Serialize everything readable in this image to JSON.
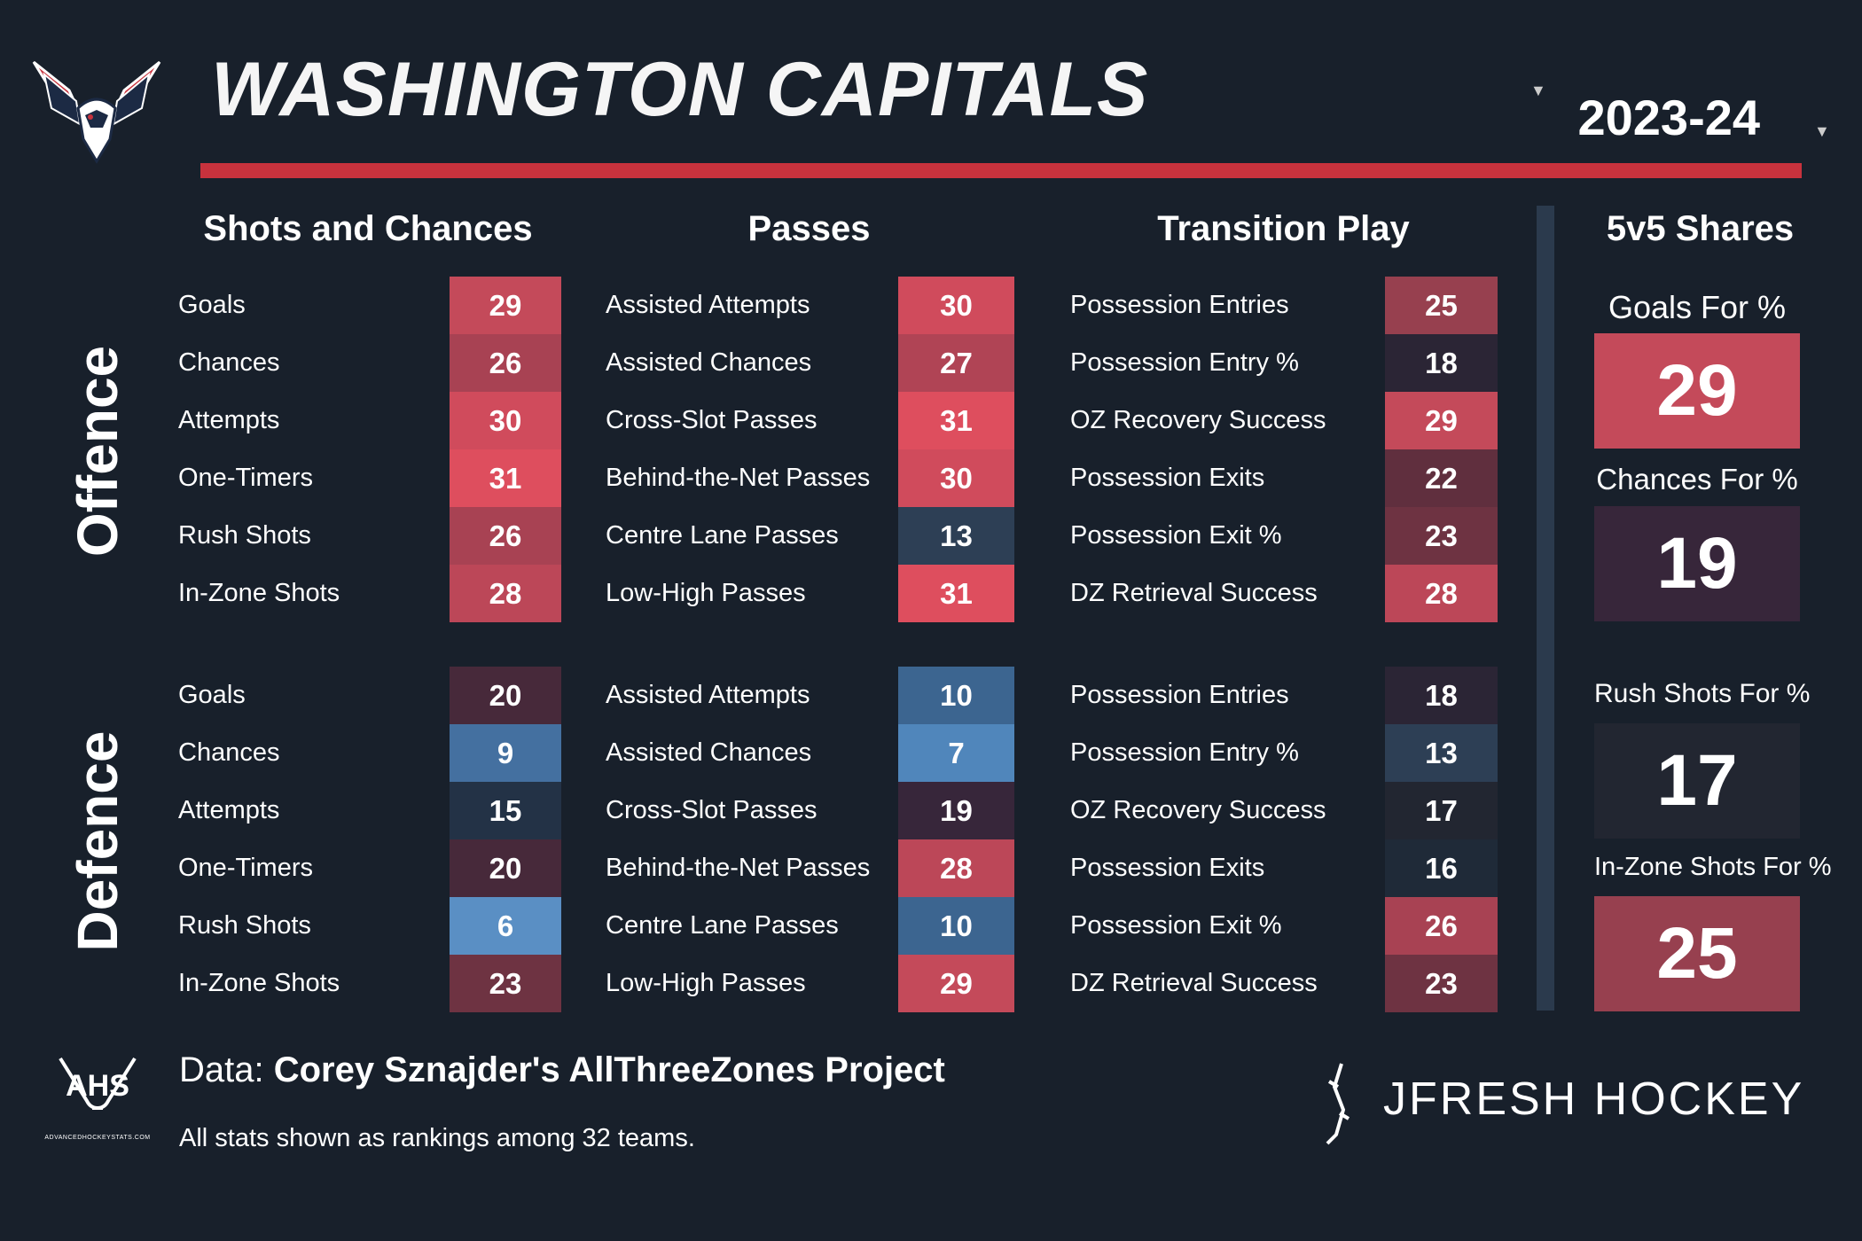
{
  "header": {
    "team": "WASHINGTON CAPITALS",
    "season": "2023-24"
  },
  "colors": {
    "bg": "#18202b",
    "accent_red": "#c8323d",
    "rank_high": "#e04a5a",
    "rank_low": "#5a8fc4"
  },
  "icons": [
    "capitals-logo-icon",
    "ahs-logo-icon",
    "jfresh-logo-icon",
    "chevron-down-icon"
  ],
  "sections": {
    "shots": "Shots and Chances",
    "passes": "Passes",
    "transition": "Transition Play",
    "shares": "5v5 Shares"
  },
  "rows": {
    "offence": "Offence",
    "defence": "Defence"
  },
  "offence": {
    "shots": [
      {
        "label": "Goals",
        "rank": 29,
        "color": "#c44a5a"
      },
      {
        "label": "Chances",
        "rank": 26,
        "color": "#a84253"
      },
      {
        "label": "Attempts",
        "rank": 30,
        "color": "#d04b5c"
      },
      {
        "label": "One-Timers",
        "rank": 31,
        "color": "#de4e5e"
      },
      {
        "label": "Rush Shots",
        "rank": 26,
        "color": "#a84253"
      },
      {
        "label": "In-Zone Shots",
        "rank": 28,
        "color": "#bc4758"
      }
    ],
    "passes": [
      {
        "label": "Assisted Attempts",
        "rank": 30,
        "color": "#d04b5c"
      },
      {
        "label": "Assisted Chances",
        "rank": 27,
        "color": "#b04455"
      },
      {
        "label": "Cross-Slot Passes",
        "rank": 31,
        "color": "#de4e5e"
      },
      {
        "label": "Behind-the-Net Passes",
        "rank": 30,
        "color": "#d04b5c"
      },
      {
        "label": "Centre Lane Passes",
        "rank": 13,
        "color": "#2d3f55"
      },
      {
        "label": "Low-High Passes",
        "rank": 31,
        "color": "#de4e5e"
      }
    ],
    "transition": [
      {
        "label": "Possession Entries",
        "rank": 25,
        "color": "#97404f"
      },
      {
        "label": "Possession Entry %",
        "rank": 18,
        "color": "#2b2535"
      },
      {
        "label": "OZ Recovery Success",
        "rank": 29,
        "color": "#c44a5a"
      },
      {
        "label": "Possession Exits",
        "rank": 22,
        "color": "#602f3e"
      },
      {
        "label": "Possession Exit %",
        "rank": 23,
        "color": "#6e3342"
      },
      {
        "label": "DZ Retrieval Success",
        "rank": 28,
        "color": "#bc4758"
      }
    ]
  },
  "defence": {
    "shots": [
      {
        "label": "Goals",
        "rank": 20,
        "color": "#47293a"
      },
      {
        "label": "Chances",
        "rank": 9,
        "color": "#4470a0"
      },
      {
        "label": "Attempts",
        "rank": 15,
        "color": "#233246"
      },
      {
        "label": "One-Timers",
        "rank": 20,
        "color": "#47293a"
      },
      {
        "label": "Rush Shots",
        "rank": 6,
        "color": "#5a8fc4"
      },
      {
        "label": "In-Zone Shots",
        "rank": 23,
        "color": "#6e3342"
      }
    ],
    "passes": [
      {
        "label": "Assisted Attempts",
        "rank": 10,
        "color": "#3c6590"
      },
      {
        "label": "Assisted Chances",
        "rank": 7,
        "color": "#5086bb"
      },
      {
        "label": "Cross-Slot Passes",
        "rank": 19,
        "color": "#37263a"
      },
      {
        "label": "Behind-the-Net Passes",
        "rank": 28,
        "color": "#bc4758"
      },
      {
        "label": "Centre Lane Passes",
        "rank": 10,
        "color": "#3c6590"
      },
      {
        "label": "Low-High Passes",
        "rank": 29,
        "color": "#c44a5a"
      }
    ],
    "transition": [
      {
        "label": "Possession Entries",
        "rank": 18,
        "color": "#2b2535"
      },
      {
        "label": "Possession Entry %",
        "rank": 13,
        "color": "#2d3f55"
      },
      {
        "label": "OZ Recovery Success",
        "rank": 17,
        "color": "#222631"
      },
      {
        "label": "Possession Exits",
        "rank": 16,
        "color": "#1f2a38"
      },
      {
        "label": "Possession Exit %",
        "rank": 26,
        "color": "#a84253"
      },
      {
        "label": "DZ Retrieval Success",
        "rank": 23,
        "color": "#6e3342"
      }
    ]
  },
  "shares": [
    {
      "label": "Goals For %",
      "rank": 29,
      "color": "#c44a5a"
    },
    {
      "label": "Chances For %",
      "rank": 19,
      "color": "#37263a"
    },
    {
      "label": "Rush Shots For %",
      "rank": 17,
      "color": "#222631"
    },
    {
      "label": "In-Zone Shots For %",
      "rank": 25,
      "color": "#97404f"
    }
  ],
  "footer": {
    "data_prefix": "Data: ",
    "data_source": "Corey Sznajder's AllThreeZones Project",
    "note": "All stats shown as rankings among 32 teams.",
    "ahs_text": "AHS",
    "ahs_url": "ADVANCEDHOCKEYSTATS.COM",
    "brand": "JFRESH HOCKEY"
  }
}
